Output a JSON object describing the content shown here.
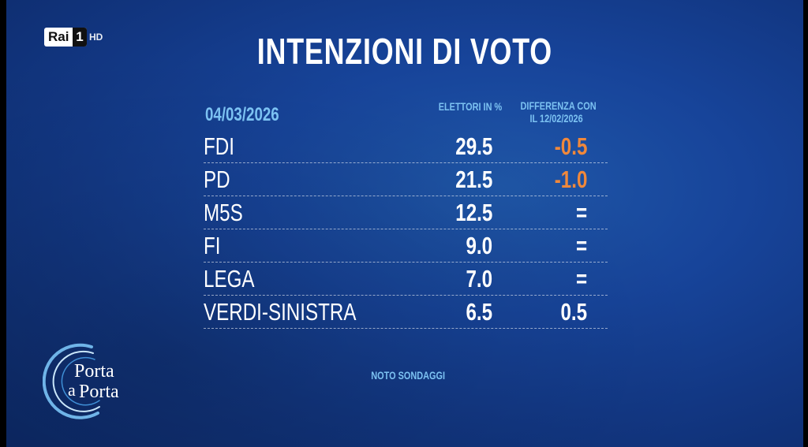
{
  "channel": {
    "name": "Rai",
    "number": "1",
    "quality": "HD"
  },
  "title": "INTENZIONI DI VOTO",
  "header": {
    "date": "04/03/2026",
    "col_share": "ELETTORI IN %",
    "col_diff_line1": "DIFFERENZA CON",
    "col_diff_line2": "IL 12/02/2026"
  },
  "rows": [
    {
      "party": "FDI",
      "value": "29.5",
      "diff": "-0.5"
    },
    {
      "party": "PD",
      "value": "21.5",
      "diff": "-1.0"
    },
    {
      "party": "M5S",
      "value": "12.5",
      "diff": "="
    },
    {
      "party": "FI",
      "value": "9.0",
      "diff": "="
    },
    {
      "party": "LEGA",
      "value": "7.0",
      "diff": "="
    },
    {
      "party": "VERDI-SINISTRA",
      "value": "6.5",
      "diff": "0.5"
    }
  ],
  "source": "NOTO SONDAGGI",
  "show_logo": {
    "line1": "Porta",
    "line2": "a",
    "line3": "Porta"
  },
  "colors": {
    "background": "#17449a",
    "accent_text": "#7cc2f2",
    "negative": "#f0883b",
    "text": "#ffffff"
  }
}
